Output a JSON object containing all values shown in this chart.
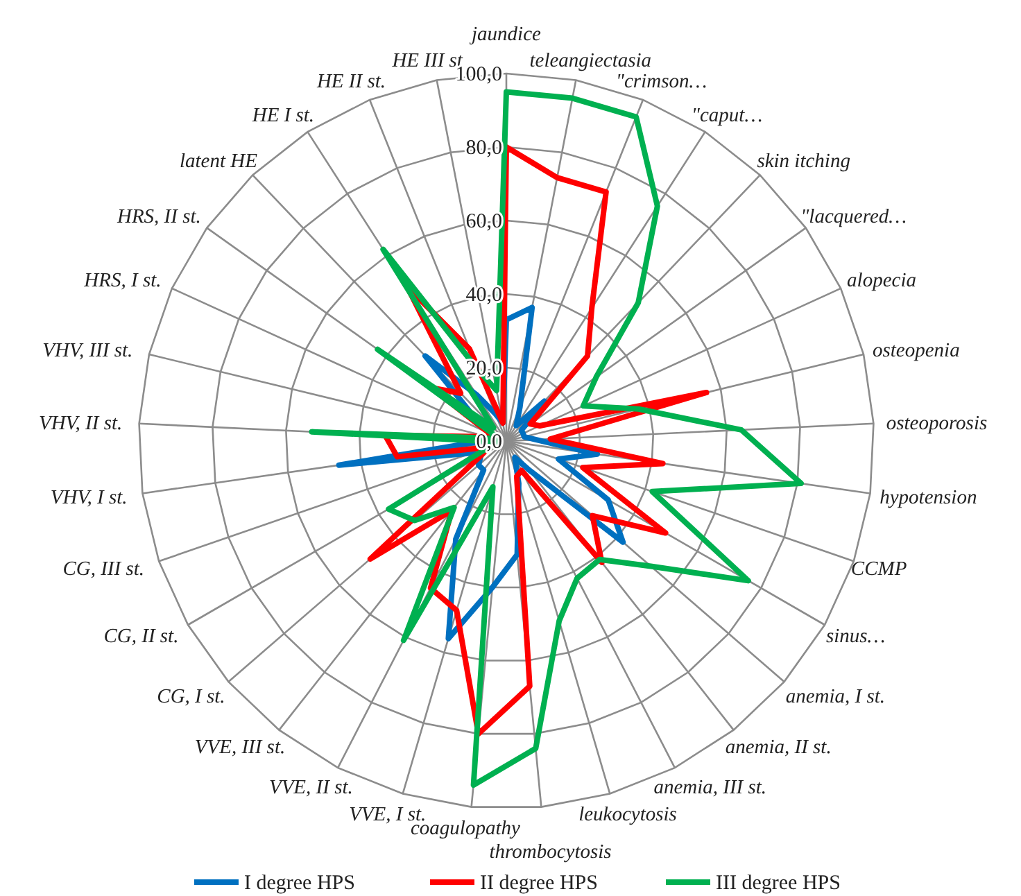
{
  "chart_data": {
    "type": "radar",
    "categories": [
      "jaundice",
      "teleangiectasia",
      "\"crimson…",
      "\"caput…",
      "skin itching",
      "\"lacquered…",
      "alopecia",
      "osteopenia",
      "osteoporosis",
      "hypotension",
      "CCMP",
      "sinus…",
      "anemia, I st.",
      "anemia, II st.",
      "anemia, III st.",
      "leukocytosis",
      "thrombocytosis",
      "coagulopathy",
      "VVE, I st.",
      "VVE, II st.",
      "VVE, III st.",
      "CG, I st.",
      "CG, II st.",
      "CG, III st.",
      "VHV, I st.",
      "VHV, II st.",
      "VHV, III st.",
      "HRS, I st.",
      "HRS, II st.",
      "latent HE",
      "HE I st.",
      "HE II st.",
      "HE III st"
    ],
    "series": [
      {
        "name": "I degree HPS",
        "color": "#0070c0",
        "values": [
          33,
          37,
          10,
          5,
          15,
          5,
          5,
          5,
          8,
          25,
          15,
          32,
          42,
          10,
          5,
          12,
          31,
          40,
          56,
          30,
          10,
          10,
          8,
          10,
          46,
          5,
          5,
          5,
          10,
          32,
          15,
          8,
          5
        ]
      },
      {
        "name": "II degree HPS",
        "color": "#ff0000",
        "values": [
          80,
          73,
          73,
          43,
          32,
          8,
          10,
          56,
          12,
          43,
          22,
          50,
          31,
          42,
          9,
          10,
          67,
          80,
          48,
          45,
          24,
          49,
          8,
          5,
          30,
          33,
          5,
          5,
          25,
          18,
          50,
          27,
          5
        ]
      },
      {
        "name": "III degree HPS",
        "color": "#00b050",
        "values": [
          95,
          95,
          95,
          76,
          52,
          30,
          23,
          37,
          64,
          81,
          42,
          76,
          52,
          41,
          42,
          51,
          84,
          94,
          13,
          61,
          23,
          33,
          37,
          5,
          2,
          53,
          3,
          3,
          43,
          5,
          62,
          21,
          14
        ]
      }
    ],
    "ylim": [
      0,
      100
    ],
    "yticks": [
      {
        "value": 0,
        "label": "0,0"
      },
      {
        "value": 20,
        "label": "20,0"
      },
      {
        "value": 40,
        "label": "40,0"
      },
      {
        "value": 60,
        "label": "60,0"
      },
      {
        "value": 80,
        "label": "80,0"
      },
      {
        "value": 100,
        "label": "100,0"
      }
    ],
    "grid": true,
    "legend": "bottom",
    "marker": "none",
    "line_style": "solid"
  }
}
